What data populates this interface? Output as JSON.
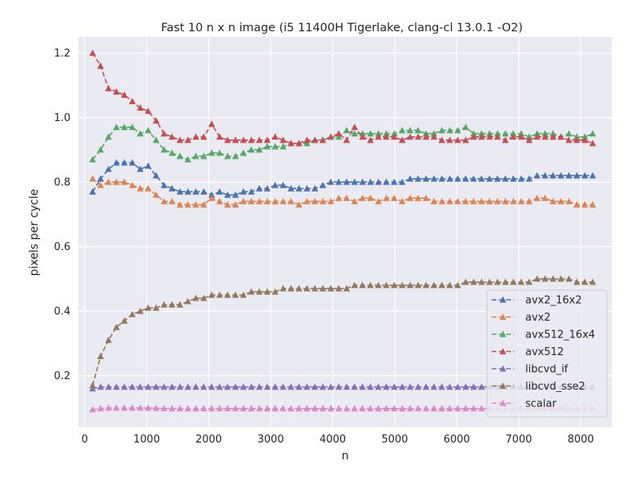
{
  "chart_data": {
    "type": "line",
    "title": "Fast 10 n x n image (i5 11400H Tigerlake, clang-cl 13.0.1 -O2)",
    "xlabel": "n",
    "ylabel": "pixels per cycle",
    "xlim": [
      -100,
      8500
    ],
    "ylim": [
      0.04,
      1.25
    ],
    "x_ticks": [
      "0",
      "1000",
      "2000",
      "3000",
      "4000",
      "5000",
      "6000",
      "7000",
      "8000"
    ],
    "y_ticks": [
      "0.2",
      "0.4",
      "0.6",
      "0.8",
      "1.0",
      "1.2"
    ],
    "grid": true,
    "legend_position": "lower-right",
    "marker": "triangle",
    "line_style": "dashed",
    "x_start": 128,
    "x_step": 128,
    "series": [
      {
        "name": "avx2_16x2",
        "color": "#4c72b0",
        "values": [
          0.77,
          0.81,
          0.84,
          0.86,
          0.86,
          0.86,
          0.84,
          0.85,
          0.82,
          0.79,
          0.78,
          0.77,
          0.77,
          0.77,
          0.77,
          0.76,
          0.77,
          0.76,
          0.76,
          0.77,
          0.77,
          0.78,
          0.78,
          0.79,
          0.79,
          0.78,
          0.78,
          0.78,
          0.78,
          0.79,
          0.8,
          0.8,
          0.8,
          0.8,
          0.8,
          0.8,
          0.8,
          0.8,
          0.8,
          0.8,
          0.81,
          0.81,
          0.81,
          0.81,
          0.81,
          0.81,
          0.81,
          0.81,
          0.81,
          0.81,
          0.81,
          0.81,
          0.81,
          0.81,
          0.81,
          0.81,
          0.82,
          0.82,
          0.82,
          0.82,
          0.82,
          0.82,
          0.82,
          0.82
        ]
      },
      {
        "name": "avx2",
        "color": "#dd8452",
        "values": [
          0.81,
          0.79,
          0.8,
          0.8,
          0.8,
          0.79,
          0.78,
          0.78,
          0.76,
          0.74,
          0.74,
          0.73,
          0.73,
          0.73,
          0.73,
          0.75,
          0.74,
          0.73,
          0.73,
          0.74,
          0.74,
          0.74,
          0.74,
          0.74,
          0.74,
          0.74,
          0.73,
          0.74,
          0.74,
          0.74,
          0.74,
          0.75,
          0.75,
          0.74,
          0.75,
          0.75,
          0.74,
          0.75,
          0.75,
          0.74,
          0.75,
          0.75,
          0.75,
          0.74,
          0.74,
          0.74,
          0.74,
          0.74,
          0.74,
          0.74,
          0.74,
          0.74,
          0.74,
          0.74,
          0.74,
          0.74,
          0.75,
          0.75,
          0.74,
          0.74,
          0.74,
          0.73,
          0.73,
          0.73
        ]
      },
      {
        "name": "avx512_16x4",
        "color": "#55a868",
        "values": [
          0.87,
          0.9,
          0.94,
          0.97,
          0.97,
          0.97,
          0.95,
          0.96,
          0.93,
          0.9,
          0.89,
          0.88,
          0.87,
          0.88,
          0.88,
          0.89,
          0.89,
          0.88,
          0.88,
          0.89,
          0.9,
          0.9,
          0.91,
          0.91,
          0.91,
          0.92,
          0.92,
          0.92,
          0.93,
          0.93,
          0.94,
          0.94,
          0.96,
          0.95,
          0.95,
          0.95,
          0.95,
          0.95,
          0.95,
          0.96,
          0.96,
          0.96,
          0.95,
          0.95,
          0.96,
          0.96,
          0.96,
          0.97,
          0.95,
          0.95,
          0.95,
          0.95,
          0.95,
          0.95,
          0.95,
          0.94,
          0.95,
          0.95,
          0.95,
          0.94,
          0.95,
          0.94,
          0.94,
          0.95
        ]
      },
      {
        "name": "avx512",
        "color": "#c44e52",
        "values": [
          1.2,
          1.16,
          1.09,
          1.08,
          1.07,
          1.05,
          1.03,
          1.02,
          0.99,
          0.95,
          0.94,
          0.93,
          0.93,
          0.94,
          0.94,
          0.98,
          0.94,
          0.93,
          0.93,
          0.93,
          0.93,
          0.93,
          0.93,
          0.94,
          0.93,
          0.92,
          0.92,
          0.93,
          0.93,
          0.93,
          0.94,
          0.95,
          0.93,
          0.97,
          0.94,
          0.93,
          0.94,
          0.94,
          0.94,
          0.93,
          0.94,
          0.94,
          0.94,
          0.94,
          0.93,
          0.93,
          0.93,
          0.93,
          0.94,
          0.94,
          0.94,
          0.94,
          0.93,
          0.94,
          0.94,
          0.93,
          0.94,
          0.94,
          0.94,
          0.94,
          0.93,
          0.93,
          0.93,
          0.92
        ]
      },
      {
        "name": "libcvd_if",
        "color": "#8172b3",
        "values": [
          0.16,
          0.165,
          0.165,
          0.165,
          0.165,
          0.165,
          0.165,
          0.165,
          0.165,
          0.165,
          0.165,
          0.165,
          0.165,
          0.165,
          0.165,
          0.165,
          0.165,
          0.165,
          0.165,
          0.165,
          0.165,
          0.165,
          0.165,
          0.165,
          0.165,
          0.165,
          0.165,
          0.165,
          0.165,
          0.165,
          0.165,
          0.165,
          0.165,
          0.165,
          0.165,
          0.165,
          0.165,
          0.165,
          0.165,
          0.165,
          0.165,
          0.165,
          0.165,
          0.165,
          0.165,
          0.165,
          0.165,
          0.165,
          0.165,
          0.165,
          0.165,
          0.165,
          0.165,
          0.165,
          0.165,
          0.165,
          0.165,
          0.165,
          0.165,
          0.165,
          0.165,
          0.165,
          0.165,
          0.165
        ]
      },
      {
        "name": "libcvd_sse2",
        "color": "#937860",
        "values": [
          0.17,
          0.26,
          0.31,
          0.35,
          0.37,
          0.39,
          0.4,
          0.41,
          0.41,
          0.42,
          0.42,
          0.42,
          0.43,
          0.44,
          0.44,
          0.45,
          0.45,
          0.45,
          0.45,
          0.45,
          0.46,
          0.46,
          0.46,
          0.46,
          0.47,
          0.47,
          0.47,
          0.47,
          0.47,
          0.47,
          0.47,
          0.47,
          0.47,
          0.48,
          0.48,
          0.48,
          0.48,
          0.48,
          0.48,
          0.48,
          0.48,
          0.48,
          0.48,
          0.48,
          0.48,
          0.48,
          0.48,
          0.49,
          0.49,
          0.49,
          0.49,
          0.49,
          0.49,
          0.49,
          0.49,
          0.49,
          0.5,
          0.5,
          0.5,
          0.5,
          0.5,
          0.49,
          0.49,
          0.49
        ]
      },
      {
        "name": "scalar",
        "color": "#da8bc3",
        "values": [
          0.095,
          0.098,
          0.1,
          0.1,
          0.1,
          0.1,
          0.1,
          0.1,
          0.099,
          0.098,
          0.098,
          0.098,
          0.098,
          0.098,
          0.098,
          0.098,
          0.098,
          0.098,
          0.098,
          0.098,
          0.098,
          0.098,
          0.098,
          0.098,
          0.098,
          0.098,
          0.098,
          0.098,
          0.098,
          0.098,
          0.098,
          0.098,
          0.098,
          0.098,
          0.098,
          0.098,
          0.098,
          0.098,
          0.098,
          0.098,
          0.098,
          0.098,
          0.098,
          0.098,
          0.098,
          0.098,
          0.098,
          0.098,
          0.098,
          0.098,
          0.098,
          0.098,
          0.098,
          0.098,
          0.098,
          0.098,
          0.098,
          0.098,
          0.098,
          0.098,
          0.098,
          0.098,
          0.098,
          0.098
        ]
      }
    ]
  }
}
